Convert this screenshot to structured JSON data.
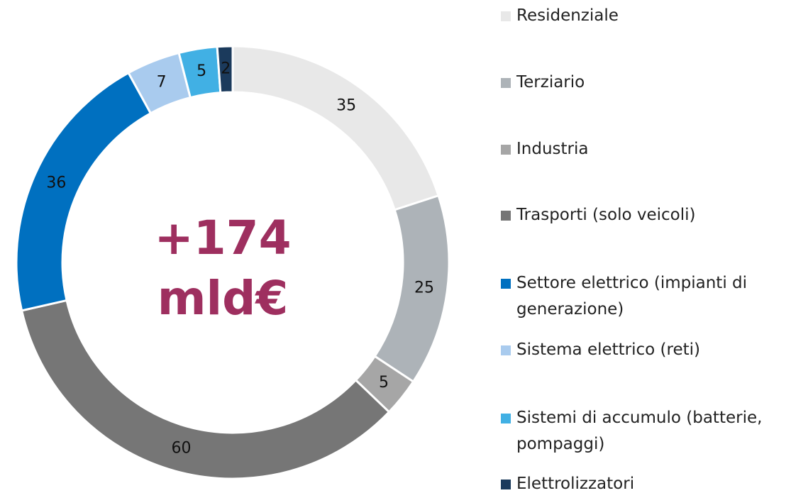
{
  "chart_data": {
    "type": "pie",
    "annotations": [
      "+174",
      "mld€"
    ],
    "categories": [
      "Residenziale",
      "Terziario",
      "Industria",
      "Trasporti (solo veicoli)",
      "Settore elettrico (impianti di generazione)",
      "Sistema elettrico (reti)",
      "Sistemi di accumulo (batterie, pompaggi)",
      "Elettrolizzatori"
    ],
    "values": [
      35,
      25,
      5,
      60,
      36,
      7,
      5,
      2
    ],
    "colors": [
      "#e8e8e8",
      "#adb3b8",
      "#a6a6a6",
      "#767676",
      "#0070c0",
      "#a9cbee",
      "#41b0e4",
      "#1b3a5c"
    ],
    "legend": "right"
  }
}
